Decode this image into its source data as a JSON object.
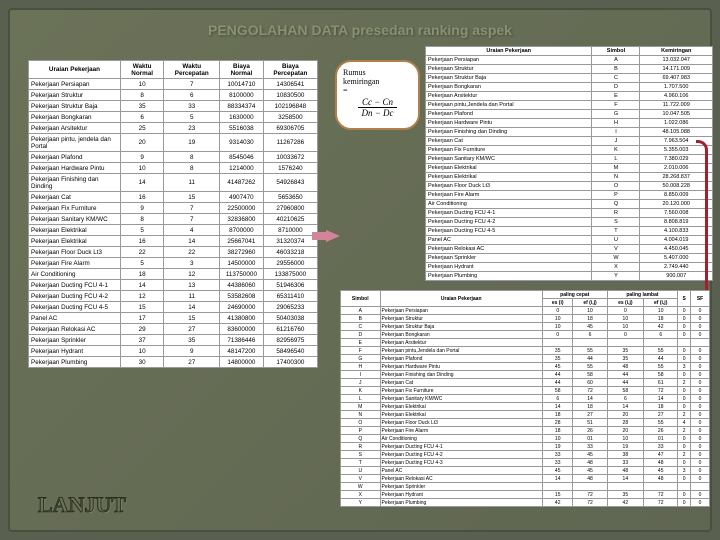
{
  "title": "PENGOLAHAN DATA presedan ranking aspek",
  "lanjut": "LANJUT",
  "rumus": {
    "label1": "Rumus",
    "label2": "kemiringan",
    "top": "Cc − Cn",
    "bot": "Dn − Dc"
  },
  "mainTable": {
    "headers": [
      "Uraian Pekerjaan",
      "Waktu Normal",
      "Waktu Percepatan",
      "Biaya Normal",
      "Biaya Percepatan"
    ],
    "rows": [
      [
        "Pekerjaan Persiapan",
        "10",
        "7",
        "10014710",
        "14306541"
      ],
      [
        "Pekerjaan Struktur",
        "8",
        "6",
        "8100000",
        "10830500"
      ],
      [
        "Pekerjaan Struktur Baja",
        "35",
        "33",
        "88334374",
        "102196848"
      ],
      [
        "Pekerjaan Bongkaran",
        "6",
        "5",
        "1630000",
        "3258500"
      ],
      [
        "Pekerjaan Arsitektur",
        "25",
        "23",
        "5516038",
        "69306705"
      ],
      [
        "Pekerjaan pintu, jendela dan Portal",
        "20",
        "19",
        "9314030",
        "11267286"
      ],
      [
        "Pekerjaan Plafond",
        "9",
        "8",
        "8545046",
        "10033672"
      ],
      [
        "Pekerjaan Hardware Pintu",
        "10",
        "8",
        "1214000",
        "1576240"
      ],
      [
        "Pekerjaan Finishing dan Dinding",
        "14",
        "11",
        "41487262",
        "54926843"
      ],
      [
        "Pekerjaan Cat",
        "16",
        "15",
        "4907470",
        "5653650"
      ],
      [
        "Pekerjaan Fix Furniture",
        "9",
        "7",
        "22500000",
        "27960800"
      ],
      [
        "Pekerjaan Sanitary KM/WC",
        "8",
        "7",
        "32836800",
        "40210625"
      ],
      [
        "Pekerjaan Elektrikal",
        "5",
        "4",
        "8700000",
        "8710000"
      ],
      [
        "Pekerjaan Elektrikal",
        "16",
        "14",
        "25667041",
        "31320374"
      ],
      [
        "Pekerjaan Floor Duck Lt3",
        "22",
        "22",
        "38272960",
        "46033218"
      ],
      [
        "Pekerjaan Fire Alarm",
        "5",
        "3",
        "14500000",
        "29556000"
      ],
      [
        "Air Conditioning",
        "18",
        "12",
        "113750000",
        "133875000"
      ],
      [
        "Pekerjaan Ducting FCU 4-1",
        "14",
        "13",
        "44386060",
        "51946306"
      ],
      [
        "Pekerjaan Ducting FCU 4-2",
        "12",
        "11",
        "53582608",
        "65311410"
      ],
      [
        "Pekerjaan Ducting FCU 4-5",
        "15",
        "14",
        "24690000",
        "29065233"
      ],
      [
        "Panel AC",
        "17",
        "15",
        "41380800",
        "50403038"
      ],
      [
        "Pekerjaan Relokasi AC",
        "29",
        "27",
        "83600000",
        "61216760"
      ],
      [
        "Pekerjaan Sprinkler",
        "37",
        "35",
        "71386446",
        "82956975"
      ],
      [
        "Pekerjaan Hydrant",
        "10",
        "9",
        "48147200",
        "58496540"
      ],
      [
        "Pekerjaan Plumbing",
        "30",
        "27",
        "14800000",
        "17400300"
      ]
    ]
  },
  "symbolTable": {
    "headers": [
      "Uraian Pekerjaan",
      "Simbol",
      "Kemiringan"
    ],
    "rows": [
      [
        "Pekerjaan Persiapan",
        "A",
        "13.032.047"
      ],
      [
        "Pekerjaan Struktur",
        "B",
        "14.171.009"
      ],
      [
        "Pekerjaan Struktur Baja",
        "C",
        "69.407.983"
      ],
      [
        "Pekerjaan Bongkaran",
        "D",
        "1.707.500"
      ],
      [
        "Pekerjaan Arsitektur",
        "E",
        "4.960.106"
      ],
      [
        "Pekerjaan pintu,Jendela dan Portal",
        "F",
        "11.722.009"
      ],
      [
        "Pekerjaan Plafond",
        "G",
        "10.047.505"
      ],
      [
        "Pekerjaan Hardware Pintu",
        "H",
        "1.022.086"
      ],
      [
        "Pekerjaan Finishing dan Dinding",
        "I",
        "48.105.088"
      ],
      [
        "Pekerjaan Cat",
        "J",
        "7.963.504"
      ],
      [
        "Pekerjaan Fix Furniture",
        "K",
        "5.355.003"
      ],
      [
        "Pekerjaan Sanitary KM/WC",
        "L",
        "7.380.029"
      ],
      [
        "Pekerjaan Elektrikal",
        "M",
        "2.010.006"
      ],
      [
        "Pekerjaan Elektrikal",
        "N",
        "28.268.837"
      ],
      [
        "Pekerjaan Floor Duck Lt3",
        "O",
        "50.008.228"
      ],
      [
        "Pekerjaan Fire Alarm",
        "P",
        "8.850.009"
      ],
      [
        "Air Conditioning",
        "Q",
        "20.120.000"
      ],
      [
        "Pekerjaan Ducting FCU 4-1",
        "R",
        "7.560.008"
      ],
      [
        "Pekerjaan Ducting FCU 4-2",
        "S",
        "8.808.819"
      ],
      [
        "Pekerjaan Ducting FCU 4-5",
        "T",
        "4.100.833"
      ],
      [
        "Panel AC",
        "U",
        "4.004.019"
      ],
      [
        "Pekerjaan Relokasi AC",
        "V",
        "4.450.045"
      ],
      [
        "Pekerjaan Sprinkler",
        "W",
        "5.407.000"
      ],
      [
        "Pekerjaan Hydrant",
        "X",
        "2.749.440"
      ],
      [
        "Pekerjaan Plumbing",
        "Y",
        "900.007"
      ]
    ]
  },
  "analysisTable": {
    "headers1": [
      "Simbol",
      "Uraian Pekerjaan",
      "paling cepat",
      "",
      "paling lambat",
      "",
      "S",
      "SF"
    ],
    "headers2": [
      "",
      "",
      "es (i)",
      "ef (i,j)",
      "es (i,j)",
      "ef (i,j)",
      "",
      ""
    ],
    "rows": [
      [
        "A",
        "Pekerjaan Persiapan",
        "0",
        "10",
        "0",
        "10",
        "0",
        "0"
      ],
      [
        "B",
        "Pekerjaan Struktur",
        "10",
        "18",
        "10",
        "18",
        "0",
        "0"
      ],
      [
        "C",
        "Pekerjaan Struktur Baja",
        "10",
        "45",
        "10",
        "42",
        "0",
        "0"
      ],
      [
        "D",
        "Pekerjaan Bongkaran",
        "0",
        "6",
        "0",
        "6",
        "0",
        "0"
      ],
      [
        "E",
        "Pekerjaan Arsitektur",
        "",
        "",
        "",
        "",
        "",
        ""
      ],
      [
        "F",
        "Pekerjaan pintu,Jendela dan Portal",
        "35",
        "55",
        "35",
        "55",
        "0",
        "0"
      ],
      [
        "G",
        "Pekerjaan Plafond",
        "35",
        "44",
        "35",
        "44",
        "0",
        "0"
      ],
      [
        "H",
        "Pekerjaan Hardware Pintu",
        "45",
        "55",
        "48",
        "55",
        "3",
        "0"
      ],
      [
        "I",
        "Pekerjaan Finishing dan Dinding",
        "44",
        "58",
        "44",
        "58",
        "0",
        "0"
      ],
      [
        "J",
        "Pekerjaan Cat",
        "44",
        "60",
        "44",
        "61",
        "2",
        "0"
      ],
      [
        "K",
        "Pekerjaan Fix Furniture",
        "58",
        "72",
        "58",
        "72",
        "0",
        "0"
      ],
      [
        "L",
        "Pekerjaan Sanitary KM/WC",
        "6",
        "14",
        "6",
        "14",
        "0",
        "0"
      ],
      [
        "M",
        "Pekerjaan Elektrikal",
        "14",
        "18",
        "14",
        "18",
        "0",
        "0"
      ],
      [
        "N",
        "Pekerjaan Elektrikal",
        "18",
        "27",
        "20",
        "27",
        "2",
        "0"
      ],
      [
        "O",
        "Pekerjaan Floor Duck Lt3",
        "28",
        "51",
        "28",
        "55",
        "4",
        "0"
      ],
      [
        "P",
        "Pekerjaan Fire Alarm",
        "18",
        "26",
        "20",
        "26",
        "2",
        "0"
      ],
      [
        "Q",
        "Air Conditioning",
        "10",
        "01",
        "10",
        "01",
        "0",
        "0"
      ],
      [
        "R",
        "Pekerjaan Ducting FCU 4-1",
        "19",
        "33",
        "19",
        "33",
        "0",
        "0"
      ],
      [
        "S",
        "Pekerjaan Ducting FCU 4-2",
        "33",
        "45",
        "38",
        "47",
        "2",
        "0"
      ],
      [
        "T",
        "Pekerjaan Ducting FCU 4-3",
        "33",
        "48",
        "33",
        "48",
        "0",
        "0"
      ],
      [
        "U",
        "Panel AC",
        "45",
        "45",
        "48",
        "45",
        "3",
        "0"
      ],
      [
        "V",
        "Pekerjaan Relokasi AC",
        "14",
        "48",
        "14",
        "48",
        "0",
        "0"
      ],
      [
        "W",
        "Pekerjaan Sprinkler",
        "",
        "",
        "",
        "",
        "",
        ""
      ],
      [
        "X",
        "Pekerjaan Hydrant",
        "15",
        "72",
        "35",
        "72",
        "0",
        "0"
      ],
      [
        "Y",
        "Pekerjaan Plumbing",
        "42",
        "72",
        "42",
        "72",
        "0",
        "0"
      ]
    ]
  }
}
